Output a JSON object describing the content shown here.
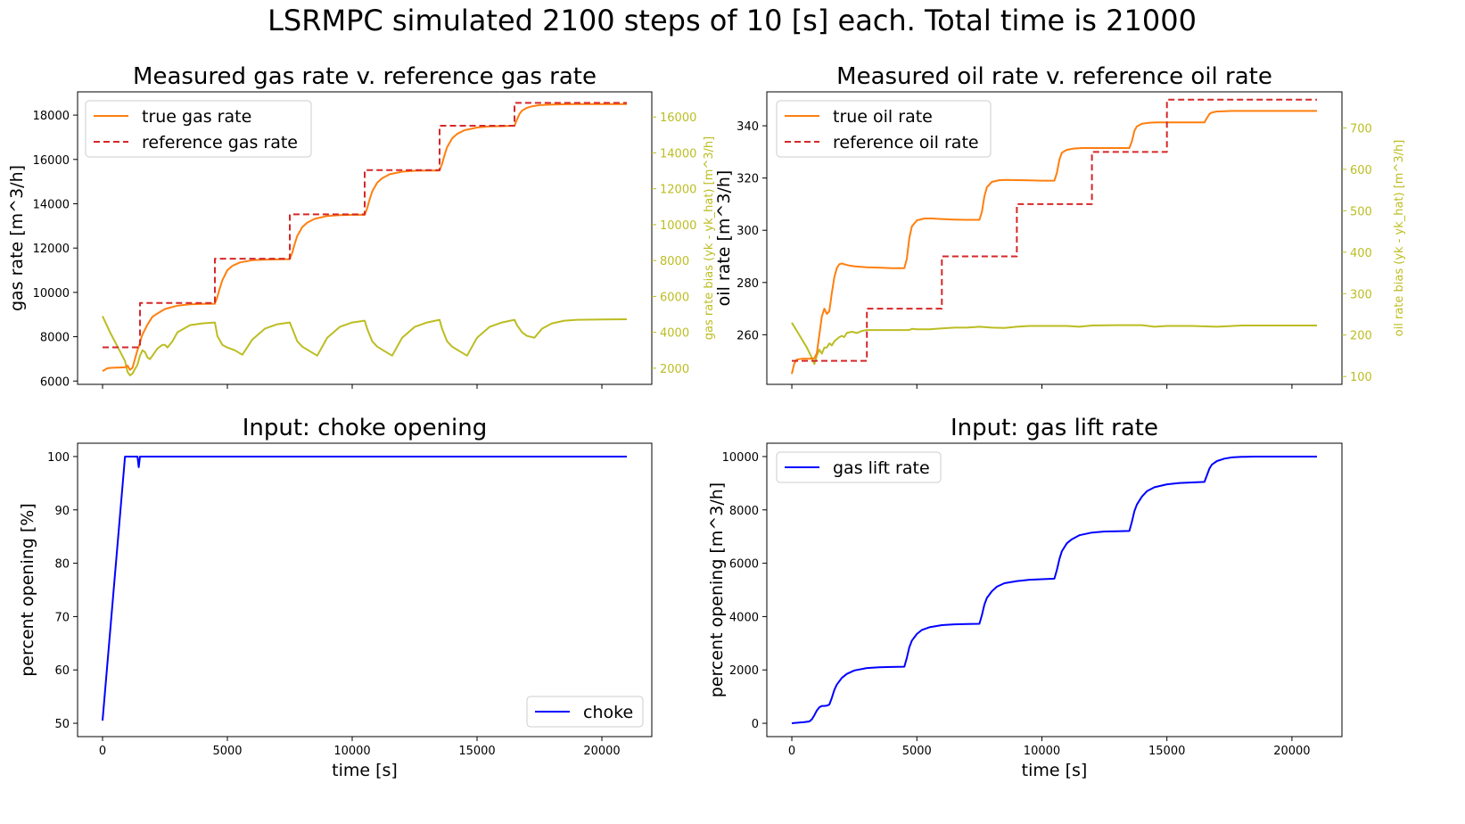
{
  "suptitle": "LSRMPC simulated 2100 steps of 10 [s] each. Total time is 21000",
  "colors": {
    "true_rate": "#ff7f0e",
    "reference": "#d62728",
    "bias": "#bcbd22",
    "input": "#0000ff",
    "axis": "#000000"
  },
  "chart_data": [
    {
      "id": "gas",
      "type": "line",
      "title": "Measured gas rate v. reference gas rate",
      "xlabel": "",
      "ylabel": "gas rate [m^3/h]",
      "y2label": "gas rate bias (yk - yk_hat) [m^3/h]",
      "xlim": [
        -1000,
        22000
      ],
      "ylim": [
        5850,
        19050
      ],
      "y2lim": [
        1100,
        17400
      ],
      "xticks": [
        0,
        5000,
        10000,
        15000,
        20000
      ],
      "xticklabels": [
        "",
        "",
        "",
        "",
        ""
      ],
      "yticks": [
        6000,
        8000,
        10000,
        12000,
        14000,
        16000,
        18000
      ],
      "yticklabels": [
        "6000",
        "8000",
        "10000",
        "12000",
        "14000",
        "16000",
        "18000"
      ],
      "y2ticks": [
        2000,
        4000,
        6000,
        8000,
        10000,
        12000,
        14000,
        16000
      ],
      "y2ticklabels": [
        "2000",
        "4000",
        "6000",
        "8000",
        "10000",
        "12000",
        "14000",
        "16000"
      ],
      "legend": "upper left",
      "series": [
        {
          "name": "true gas rate",
          "axis": "left",
          "style": "solid",
          "color": "#ff7f0e",
          "x": [
            0,
            200,
            400,
            700,
            900,
            1000,
            1100,
            1200,
            1300,
            1400,
            1500,
            1550,
            1600,
            1800,
            2000,
            2200,
            2500,
            3000,
            3500,
            4000,
            4500,
            4600,
            4700,
            4800,
            5000,
            5200,
            5500,
            6000,
            6500,
            7000,
            7500,
            7600,
            7700,
            7800,
            8000,
            8200,
            8500,
            9000,
            9500,
            10000,
            10500,
            10600,
            10700,
            10800,
            11000,
            11200,
            11500,
            12000,
            12500,
            13000,
            13500,
            13600,
            13700,
            13800,
            14000,
            14200,
            14500,
            15000,
            15500,
            16000,
            16500,
            16600,
            16700,
            16800,
            17000,
            17200,
            17500,
            18000,
            18500,
            19000,
            19500,
            20000,
            20500,
            21000
          ],
          "y": [
            6450,
            6580,
            6600,
            6610,
            6620,
            6700,
            6500,
            6600,
            7000,
            7400,
            7700,
            7950,
            8100,
            8550,
            8900,
            9050,
            9250,
            9400,
            9460,
            9480,
            9490,
            9800,
            10200,
            10550,
            11000,
            11200,
            11350,
            11450,
            11480,
            11490,
            11500,
            11800,
            12200,
            12550,
            12950,
            13150,
            13320,
            13450,
            13490,
            13500,
            13500,
            13800,
            14200,
            14550,
            14950,
            15150,
            15330,
            15450,
            15490,
            15500,
            15500,
            15800,
            16200,
            16550,
            16950,
            17150,
            17320,
            17440,
            17490,
            17500,
            17520,
            17800,
            18050,
            18200,
            18330,
            18400,
            18450,
            18480,
            18490,
            18500,
            18500,
            18500,
            18500,
            18500
          ]
        },
        {
          "name": "reference gas rate",
          "axis": "left",
          "style": "dashed",
          "color": "#d62728",
          "x": [
            0,
            1500,
            1500,
            4500,
            4500,
            7500,
            7500,
            10500,
            10500,
            13500,
            13500,
            16500,
            16500,
            21000
          ],
          "y": [
            7520,
            7520,
            9520,
            9520,
            11520,
            11520,
            13520,
            13520,
            15520,
            15520,
            17520,
            17520,
            18550,
            18550
          ]
        },
        {
          "name": "gas rate bias",
          "axis": "right",
          "style": "solid",
          "color": "#bcbd22",
          "x": [
            0,
            100,
            300,
            600,
            900,
            1000,
            1100,
            1200,
            1400,
            1500,
            1600,
            1700,
            1800,
            1900,
            2000,
            2200,
            2400,
            2500,
            2600,
            2800,
            3000,
            3500,
            4000,
            4500,
            4600,
            4800,
            5000,
            5300,
            5600,
            6000,
            6500,
            7000,
            7500,
            7600,
            7800,
            8000,
            8300,
            8600,
            9000,
            9500,
            10000,
            10500,
            10600,
            10800,
            11000,
            11300,
            11600,
            12000,
            12500,
            13000,
            13500,
            13600,
            13800,
            14000,
            14300,
            14600,
            15000,
            15500,
            16000,
            16500,
            16600,
            16800,
            17000,
            17300,
            17600,
            18000,
            18500,
            19000,
            20000,
            21000
          ],
          "y": [
            4900,
            4600,
            4000,
            3200,
            2400,
            1800,
            1600,
            1700,
            2200,
            2700,
            3000,
            2900,
            2600,
            2500,
            2700,
            3100,
            3300,
            3300,
            3150,
            3500,
            4000,
            4400,
            4500,
            4550,
            3800,
            3300,
            3150,
            3000,
            2750,
            3600,
            4200,
            4450,
            4550,
            4200,
            3500,
            3200,
            2950,
            2700,
            3700,
            4300,
            4550,
            4650,
            4200,
            3500,
            3200,
            2950,
            2700,
            3700,
            4300,
            4550,
            4700,
            4200,
            3500,
            3200,
            2950,
            2700,
            3700,
            4300,
            4550,
            4700,
            4400,
            4000,
            3800,
            3700,
            4200,
            4500,
            4650,
            4700,
            4720,
            4730
          ]
        }
      ]
    },
    {
      "id": "oil",
      "type": "line",
      "title": "Measured oil rate v. reference oil rate",
      "xlabel": "",
      "ylabel": "oil rate [m^3/h]",
      "y2label": "oil rate bias (yk - yk_hat) [m^3/h]",
      "xlim": [
        -1000,
        22000
      ],
      "ylim": [
        241,
        353
      ],
      "y2lim": [
        81,
        787
      ],
      "xticks": [
        0,
        5000,
        10000,
        15000,
        20000
      ],
      "xticklabels": [
        "",
        "",
        "",
        "",
        ""
      ],
      "yticks": [
        260,
        280,
        300,
        320,
        340
      ],
      "yticklabels": [
        "260",
        "280",
        "300",
        "320",
        "340"
      ],
      "y2ticks": [
        100,
        200,
        300,
        400,
        500,
        600,
        700
      ],
      "y2ticklabels": [
        "100",
        "200",
        "300",
        "400",
        "500",
        "600",
        "700"
      ],
      "legend": "upper left",
      "series": [
        {
          "name": "true oil rate",
          "axis": "left",
          "style": "solid",
          "color": "#ff7f0e",
          "x": [
            0,
            100,
            200,
            400,
            700,
            900,
            1000,
            1100,
            1200,
            1300,
            1400,
            1500,
            1600,
            1700,
            1800,
            1900,
            2000,
            2100,
            2300,
            2500,
            3000,
            3500,
            4000,
            4500,
            4600,
            4700,
            4800,
            5000,
            5300,
            5600,
            6000,
            6500,
            7000,
            7500,
            7600,
            7700,
            7800,
            8000,
            8300,
            8600,
            9000,
            9500,
            10000,
            10500,
            10600,
            10700,
            10800,
            11000,
            11300,
            11600,
            12000,
            12500,
            13000,
            13500,
            13600,
            13700,
            13800,
            14000,
            14300,
            14600,
            15000,
            15500,
            16000,
            16500,
            16600,
            16700,
            16800,
            17000,
            17300,
            17600,
            18000,
            18500,
            19000,
            20000,
            21000
          ],
          "y": [
            245,
            249,
            250.5,
            250.8,
            250.8,
            251,
            253,
            260,
            267,
            270,
            268,
            269,
            276,
            282,
            285.5,
            287,
            287.3,
            287,
            286.5,
            286.2,
            285.8,
            285.7,
            285.5,
            285.5,
            289,
            297,
            301.5,
            303.8,
            304.5,
            304.5,
            304.3,
            304.1,
            304,
            304,
            307,
            313,
            316.5,
            318.5,
            319.2,
            319.3,
            319.2,
            319.1,
            319,
            319,
            322,
            327,
            329.7,
            330.8,
            331.3,
            331.5,
            331.5,
            331.5,
            331.5,
            331.5,
            334,
            338,
            339.8,
            340.8,
            341.2,
            341.3,
            341.3,
            341.3,
            341.3,
            341.3,
            343,
            344.5,
            345.1,
            345.5,
            345.6,
            345.7,
            345.7,
            345.7,
            345.7,
            345.7,
            345.7
          ]
        },
        {
          "name": "reference oil rate",
          "axis": "left",
          "style": "dashed",
          "color": "#d62728",
          "x": [
            0,
            3000,
            3000,
            6000,
            6000,
            9000,
            9000,
            12000,
            12000,
            15000,
            15000,
            21000
          ],
          "y": [
            250,
            250,
            270,
            270,
            290,
            290,
            310,
            310,
            330,
            330,
            350,
            350
          ]
        },
        {
          "name": "oil rate bias",
          "axis": "right",
          "style": "solid",
          "color": "#bcbd22",
          "x": [
            0,
            200,
            400,
            600,
            800,
            900,
            1000,
            1100,
            1200,
            1300,
            1400,
            1500,
            1600,
            1700,
            1800,
            1900,
            2000,
            2100,
            2200,
            2400,
            2600,
            2800,
            3000,
            3500,
            4000,
            4500,
            4700,
            4800,
            5000,
            5500,
            6000,
            6500,
            7000,
            7500,
            8000,
            8500,
            9000,
            9500,
            10000,
            10500,
            11000,
            11500,
            12000,
            13000,
            14000,
            14500,
            15000,
            16000,
            17000,
            18000,
            19000,
            21000
          ],
          "y": [
            230,
            210,
            190,
            170,
            145,
            130,
            150,
            165,
            155,
            170,
            170,
            180,
            175,
            185,
            190,
            195,
            198,
            195,
            205,
            208,
            205,
            210,
            212,
            212,
            212,
            212,
            212,
            215,
            214,
            214,
            216,
            218,
            218,
            220,
            218,
            217,
            220,
            222,
            222,
            222,
            222,
            220,
            223,
            224,
            224,
            220,
            222,
            222,
            220,
            223,
            223,
            223
          ]
        }
      ]
    },
    {
      "id": "choke",
      "type": "line",
      "title": "Input: choke opening",
      "xlabel": "time [s]",
      "ylabel": "percent opening [%]",
      "xlim": [
        -1000,
        22000
      ],
      "ylim": [
        47.5,
        102.5
      ],
      "xticks": [
        0,
        5000,
        10000,
        15000,
        20000
      ],
      "xticklabels": [
        "0",
        "5000",
        "10000",
        "15000",
        "20000"
      ],
      "yticks": [
        50,
        60,
        70,
        80,
        90,
        100
      ],
      "yticklabels": [
        "50",
        "60",
        "70",
        "80",
        "90",
        "100"
      ],
      "legend": "lower right",
      "series": [
        {
          "name": "choke",
          "axis": "left",
          "style": "solid",
          "color": "#0000ff",
          "x": [
            0,
            900,
            1000,
            1400,
            1450,
            1500,
            1550,
            21000
          ],
          "y": [
            50.5,
            100,
            100,
            100,
            98,
            100,
            100,
            100
          ]
        }
      ]
    },
    {
      "id": "gaslift",
      "type": "line",
      "title": "Input: gas lift rate",
      "xlabel": "time [s]",
      "ylabel": "percent opening [m^3/h]",
      "xlim": [
        -1000,
        22000
      ],
      "ylim": [
        -500,
        10500
      ],
      "xticks": [
        0,
        5000,
        10000,
        15000,
        20000
      ],
      "xticklabels": [
        "0",
        "5000",
        "10000",
        "15000",
        "20000"
      ],
      "yticks": [
        0,
        2000,
        4000,
        6000,
        8000,
        10000
      ],
      "yticklabels": [
        "0",
        "2000",
        "4000",
        "6000",
        "8000",
        "10000"
      ],
      "legend": "upper left",
      "series": [
        {
          "name": "gas lift rate",
          "axis": "left",
          "style": "solid",
          "color": "#0000ff",
          "x": [
            0,
            500,
            700,
            800,
            900,
            1000,
            1100,
            1200,
            1300,
            1400,
            1500,
            1600,
            1700,
            1800,
            2000,
            2200,
            2500,
            3000,
            3500,
            4000,
            4500,
            4600,
            4700,
            4800,
            5000,
            5200,
            5500,
            6000,
            6500,
            7000,
            7500,
            7600,
            7700,
            7800,
            8000,
            8200,
            8500,
            9000,
            9500,
            10000,
            10500,
            10600,
            10700,
            10800,
            11000,
            11200,
            11500,
            12000,
            12500,
            13000,
            13500,
            13600,
            13700,
            13800,
            14000,
            14200,
            14500,
            15000,
            15500,
            16000,
            16500,
            16600,
            16700,
            16800,
            17000,
            17300,
            17600,
            18000,
            18500,
            19000,
            20000,
            21000
          ],
          "y": [
            0,
            40,
            70,
            150,
            300,
            480,
            600,
            650,
            650,
            660,
            700,
            950,
            1250,
            1450,
            1700,
            1850,
            1980,
            2070,
            2100,
            2110,
            2120,
            2450,
            2850,
            3100,
            3350,
            3500,
            3600,
            3680,
            3710,
            3720,
            3730,
            4050,
            4450,
            4700,
            4950,
            5120,
            5250,
            5330,
            5380,
            5400,
            5420,
            5750,
            6150,
            6450,
            6750,
            6900,
            7050,
            7150,
            7190,
            7200,
            7210,
            7550,
            7950,
            8200,
            8500,
            8700,
            8850,
            8960,
            9010,
            9030,
            9050,
            9300,
            9550,
            9700,
            9830,
            9920,
            9970,
            9990,
            10000,
            10000,
            10000,
            10000
          ]
        }
      ]
    }
  ]
}
